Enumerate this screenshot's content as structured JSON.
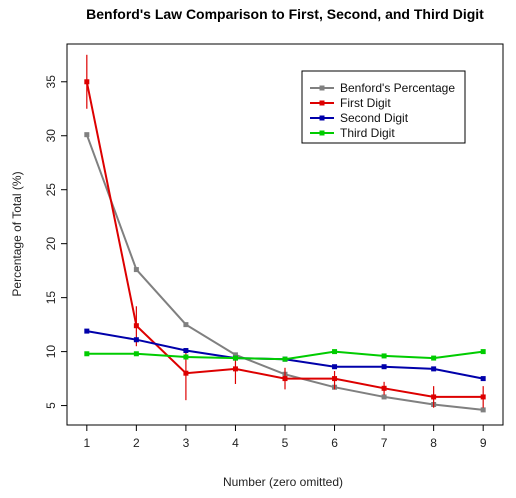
{
  "chart_data": {
    "type": "line",
    "title": "Benford's Law Comparison to First, Second, and Third Digit",
    "xlabel": "Number (zero omitted)",
    "ylabel": "Percentage of Total (%)",
    "x": [
      1,
      2,
      3,
      4,
      5,
      6,
      7,
      8,
      9
    ],
    "xlim": [
      0.6,
      9.4
    ],
    "ylim": [
      3.2,
      38.5
    ],
    "x_ticks": [
      1,
      2,
      3,
      4,
      5,
      6,
      7,
      8,
      9
    ],
    "y_ticks": [
      5,
      10,
      15,
      20,
      25,
      30,
      35
    ],
    "grid": false,
    "legend_position": "top-right",
    "series": [
      {
        "name": "Benford's Percentage",
        "color": "#808080",
        "values": [
          30.1,
          17.6,
          12.5,
          9.7,
          7.9,
          6.7,
          5.8,
          5.1,
          4.6
        ]
      },
      {
        "name": "First Digit",
        "color": "#dd0000",
        "values": [
          35.0,
          12.4,
          8.0,
          8.4,
          7.5,
          7.5,
          6.6,
          5.8,
          5.8
        ],
        "error_low": [
          32.5,
          10.5,
          5.5,
          7.0,
          6.5,
          6.5,
          6.0,
          4.8,
          4.8
        ],
        "error_high": [
          37.5,
          14.2,
          10.0,
          9.6,
          8.5,
          8.2,
          7.2,
          6.8,
          6.8
        ]
      },
      {
        "name": "Second Digit",
        "color": "#0000aa",
        "values": [
          11.9,
          11.1,
          10.1,
          9.4,
          9.3,
          8.6,
          8.6,
          8.4,
          7.5
        ]
      },
      {
        "name": "Third Digit",
        "color": "#00cc00",
        "values": [
          9.8,
          9.8,
          9.5,
          9.4,
          9.3,
          10.0,
          9.6,
          9.4,
          10.0
        ]
      }
    ]
  }
}
